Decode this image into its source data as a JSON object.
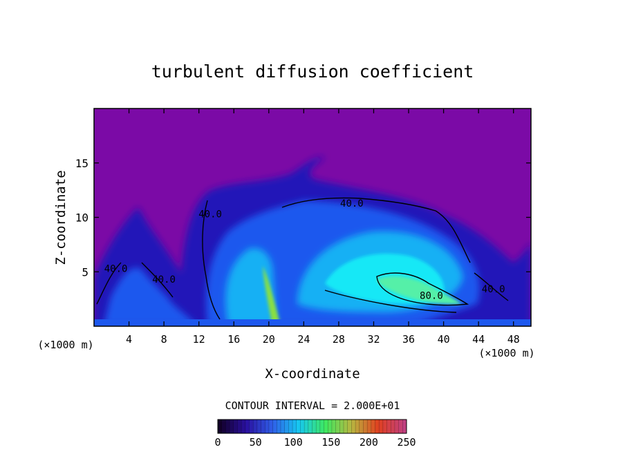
{
  "chart_data": {
    "type": "heatmap",
    "title": "turbulent diffusion coefficient",
    "xlabel": "X-coordinate",
    "ylabel": "Z-coordinate",
    "x_unit_left": "(×1000 m)",
    "x_unit_right": "(×1000 m)",
    "xlim": [
      0,
      50
    ],
    "ylim": [
      0,
      20
    ],
    "xticks": [
      4,
      8,
      12,
      16,
      20,
      24,
      28,
      32,
      36,
      40,
      44,
      48
    ],
    "yticks": [
      5,
      10,
      15
    ],
    "contour_interval_text": "CONTOUR INTERVAL = 2.000E+01",
    "contour_labels": [
      {
        "text": "40.0",
        "x": 29.5,
        "z": 11.0
      },
      {
        "text": "40.0",
        "x": 13.3,
        "z": 10.0
      },
      {
        "text": "40.0",
        "x": 2.5,
        "z": 5.0
      },
      {
        "text": "40.0",
        "x": 8.0,
        "z": 4.0
      },
      {
        "text": "80.0",
        "x": 38.6,
        "z": 2.5
      },
      {
        "text": "40.0",
        "x": 45.7,
        "z": 3.1
      }
    ],
    "colorbar": {
      "ticks": [
        0,
        50,
        100,
        150,
        200,
        250
      ],
      "range": [
        0,
        250
      ],
      "colors": [
        "#120028",
        "#2a10a0",
        "#2f5fe8",
        "#16c8f0",
        "#3ee860",
        "#b9b640",
        "#e04020",
        "#c04080"
      ]
    },
    "field_colors": {
      "background": "#7b0aa6",
      "low": "#2212b8",
      "mid": "#1d58ee",
      "high": "#12b0f4",
      "core": "#16e8f6",
      "peak": "#55f0a8",
      "jet": "#8ae040"
    }
  }
}
